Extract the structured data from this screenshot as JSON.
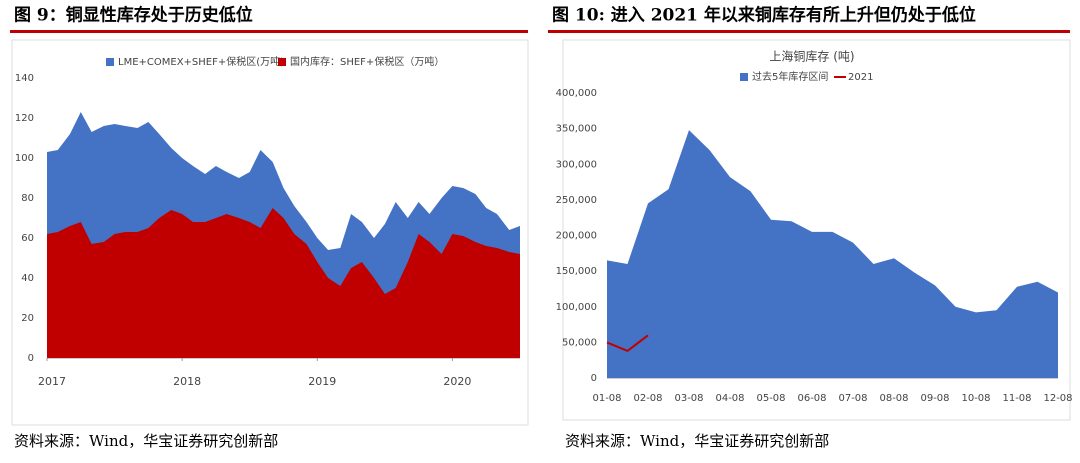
{
  "panels": [
    {
      "title": "图 9：铜显性库存处于历史低位",
      "source": "资料来源：Wind，华宝证券研究创新部"
    },
    {
      "title": "图 10: 进入 2021 年以来铜库存有所上升但仍处于低位",
      "source": "资料来源：Wind，华宝证券研究创新部"
    }
  ],
  "chart_data": [
    {
      "type": "area",
      "x": [
        2017.0,
        2017.08,
        2017.17,
        2017.25,
        2017.33,
        2017.42,
        2017.5,
        2017.58,
        2017.67,
        2017.75,
        2017.83,
        2017.92,
        2018.0,
        2018.08,
        2018.17,
        2018.25,
        2018.33,
        2018.42,
        2018.5,
        2018.58,
        2018.67,
        2018.75,
        2018.83,
        2018.92,
        2019.0,
        2019.08,
        2019.17,
        2019.25,
        2019.33,
        2019.42,
        2019.5,
        2019.58,
        2019.67,
        2019.75,
        2019.83,
        2019.92,
        2020.0,
        2020.08,
        2020.17,
        2020.25,
        2020.33,
        2020.42,
        2020.5
      ],
      "xlim": [
        2017.0,
        2020.5
      ],
      "xticks": [
        2017,
        2018,
        2019,
        2020
      ],
      "ylim": [
        0,
        140
      ],
      "yticks": [
        0,
        20,
        40,
        60,
        80,
        100,
        120,
        140
      ],
      "series": [
        {
          "name": "LME+COMEX+SHEF+保税区(万吨)",
          "color": "#4472c4",
          "values": [
            103,
            104,
            112,
            123,
            113,
            116,
            117,
            116,
            115,
            118,
            112,
            105,
            100,
            96,
            92,
            96,
            93,
            90,
            93,
            104,
            98,
            85,
            76,
            68,
            60,
            54,
            55,
            72,
            68,
            60,
            67,
            78,
            70,
            78,
            72,
            80,
            86,
            85,
            82,
            75,
            72,
            64,
            66
          ]
        },
        {
          "name": "国内库存：SHEF+保税区（万吨）",
          "color": "#c00000",
          "values": [
            62,
            63,
            66,
            68,
            57,
            58,
            62,
            63,
            63,
            65,
            70,
            74,
            72,
            68,
            68,
            70,
            72,
            70,
            68,
            65,
            75,
            70,
            62,
            57,
            48,
            40,
            36,
            45,
            48,
            40,
            32,
            35,
            48,
            62,
            58,
            52,
            62,
            61,
            58,
            56,
            55,
            53,
            52
          ]
        }
      ]
    },
    {
      "type": "area",
      "title": "上海铜库存 (吨)",
      "categories": [
        "01-08",
        null,
        "02-08",
        null,
        "03-08",
        null,
        "04-08",
        null,
        "05-08",
        null,
        "06-08",
        null,
        "07-08",
        null,
        "08-08",
        null,
        "09-08",
        null,
        "10-08",
        null,
        "11-08",
        null,
        "12-08"
      ],
      "ylim": [
        0,
        400000
      ],
      "yticks": [
        0,
        {
          "value": 50000,
          "label": "50,000"
        },
        {
          "value": 100000,
          "label": "100,000"
        },
        {
          "value": 150000,
          "label": "150,000"
        },
        {
          "value": 200000,
          "label": "200,000"
        },
        {
          "value": 250000,
          "label": "250,000"
        },
        {
          "value": 300000,
          "label": "300,000"
        },
        {
          "value": 350000,
          "label": "350,000"
        },
        {
          "value": 400000,
          "label": "400,000"
        }
      ],
      "series": [
        {
          "name": "过去5年库存区间",
          "color": "#4472c4",
          "values": [
            165000,
            160000,
            245000,
            265000,
            348000,
            320000,
            282000,
            262000,
            222000,
            220000,
            205000,
            205000,
            190000,
            160000,
            168000,
            148000,
            130000,
            100000,
            92000,
            95000,
            128000,
            135000,
            120000
          ]
        },
        {
          "name": "2021",
          "color": "#c00000",
          "line": true,
          "values": [
            50000,
            38000,
            60000,
            null,
            null,
            null,
            null,
            null,
            null,
            null,
            null,
            null,
            null,
            null,
            null,
            null,
            null,
            null,
            null,
            null,
            null,
            null,
            null
          ]
        }
      ]
    }
  ]
}
